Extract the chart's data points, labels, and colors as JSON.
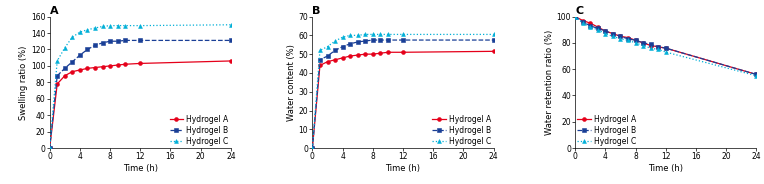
{
  "panel_A": {
    "title": "A",
    "xlabel": "Time (h)",
    "ylabel": "Swelling ratio (%)",
    "xlim": [
      0,
      24
    ],
    "ylim": [
      0,
      160
    ],
    "yticks": [
      0,
      20,
      40,
      60,
      80,
      100,
      120,
      140,
      160
    ],
    "xticks": [
      0,
      4,
      8,
      12,
      16,
      20,
      24
    ],
    "hydrogel_A": {
      "x": [
        0,
        1,
        2,
        3,
        4,
        5,
        6,
        7,
        8,
        9,
        10,
        12,
        24
      ],
      "y": [
        0,
        78,
        88,
        93,
        95,
        97,
        98,
        99,
        100,
        101,
        102,
        103,
        106
      ],
      "color": "#e5001a",
      "linestyle": "solid",
      "marker": "o",
      "label": "Hydrogel A"
    },
    "hydrogel_B": {
      "x": [
        0,
        1,
        2,
        3,
        4,
        5,
        6,
        7,
        8,
        9,
        10,
        12,
        24
      ],
      "y": [
        0,
        88,
        97,
        105,
        113,
        120,
        125,
        128,
        130,
        130,
        131,
        131,
        131
      ],
      "color": "#1a3f96",
      "linestyle": "dashed",
      "marker": "s",
      "label": "Hydrogel B"
    },
    "hydrogel_C": {
      "x": [
        0,
        1,
        2,
        3,
        4,
        5,
        6,
        7,
        8,
        9,
        10,
        12,
        24
      ],
      "y": [
        0,
        106,
        122,
        135,
        141,
        144,
        146,
        148,
        149,
        149,
        149,
        149,
        150
      ],
      "color": "#00afd7",
      "linestyle": "dotted",
      "marker": "^",
      "label": "Hydrogel C"
    }
  },
  "panel_B": {
    "title": "B",
    "xlabel": "Time (h)",
    "ylabel": "Water content (%)",
    "xlim": [
      0,
      24
    ],
    "ylim": [
      0,
      70
    ],
    "yticks": [
      0,
      10,
      20,
      30,
      40,
      50,
      60,
      70
    ],
    "xticks": [
      0,
      4,
      8,
      12,
      16,
      20,
      24
    ],
    "hydrogel_A": {
      "x": [
        0,
        1,
        2,
        3,
        4,
        5,
        6,
        7,
        8,
        9,
        10,
        12,
        24
      ],
      "y": [
        0,
        44,
        46,
        47,
        48,
        49,
        49.5,
        50,
        50,
        50.5,
        51,
        51,
        51.5
      ],
      "color": "#e5001a",
      "linestyle": "solid",
      "marker": "o",
      "label": "Hydrogel A"
    },
    "hydrogel_B": {
      "x": [
        0,
        1,
        2,
        3,
        4,
        5,
        6,
        7,
        8,
        9,
        10,
        12,
        24
      ],
      "y": [
        0,
        47,
        49,
        52,
        54,
        55.5,
        56.5,
        57,
        57.5,
        57.5,
        57.5,
        57.5,
        57.5
      ],
      "color": "#1a3f96",
      "linestyle": "dashed",
      "marker": "s",
      "label": "Hydrogel B"
    },
    "hydrogel_C": {
      "x": [
        0,
        1,
        2,
        3,
        4,
        5,
        6,
        7,
        8,
        9,
        10,
        12,
        24
      ],
      "y": [
        0,
        52,
        54,
        57,
        59,
        60,
        60,
        60.5,
        60.5,
        60.5,
        60.5,
        60.5,
        60.5
      ],
      "color": "#00afd7",
      "linestyle": "dotted",
      "marker": "^",
      "label": "Hydrogel C"
    }
  },
  "panel_C": {
    "title": "C",
    "xlabel": "Time (h)",
    "ylabel": "Water retention ratio (%)",
    "xlim": [
      0,
      24
    ],
    "ylim": [
      0,
      100
    ],
    "yticks": [
      0,
      20,
      40,
      60,
      80,
      100
    ],
    "xticks": [
      0,
      4,
      8,
      12,
      16,
      20,
      24
    ],
    "hydrogel_A": {
      "x": [
        0,
        1,
        2,
        3,
        4,
        5,
        6,
        7,
        8,
        9,
        10,
        11,
        12,
        24
      ],
      "y": [
        100,
        97,
        95,
        92,
        89,
        87,
        85,
        84,
        82,
        80,
        78,
        77,
        76,
        56
      ],
      "color": "#e5001a",
      "linestyle": "solid",
      "marker": "o",
      "label": "Hydrogel A"
    },
    "hydrogel_B": {
      "x": [
        0,
        1,
        2,
        3,
        4,
        5,
        6,
        7,
        8,
        9,
        10,
        11,
        12,
        24
      ],
      "y": [
        100,
        96,
        93,
        91,
        89,
        87,
        85,
        83,
        82,
        80,
        79,
        77,
        76,
        56
      ],
      "color": "#1a3f96",
      "linestyle": "dashed",
      "marker": "s",
      "label": "Hydrogel B"
    },
    "hydrogel_C": {
      "x": [
        0,
        1,
        2,
        3,
        4,
        5,
        6,
        7,
        8,
        9,
        10,
        11,
        12,
        24
      ],
      "y": [
        100,
        95,
        92,
        90,
        87,
        85,
        83,
        82,
        80,
        78,
        76,
        75,
        73,
        55
      ],
      "color": "#00afd7",
      "linestyle": "dotted",
      "marker": "^",
      "label": "Hydrogel C"
    }
  },
  "legend_fontsize": 5.5,
  "tick_fontsize": 5.5,
  "label_fontsize": 6.0,
  "title_fontsize": 8,
  "linewidth": 0.9,
  "markersize": 2.8
}
